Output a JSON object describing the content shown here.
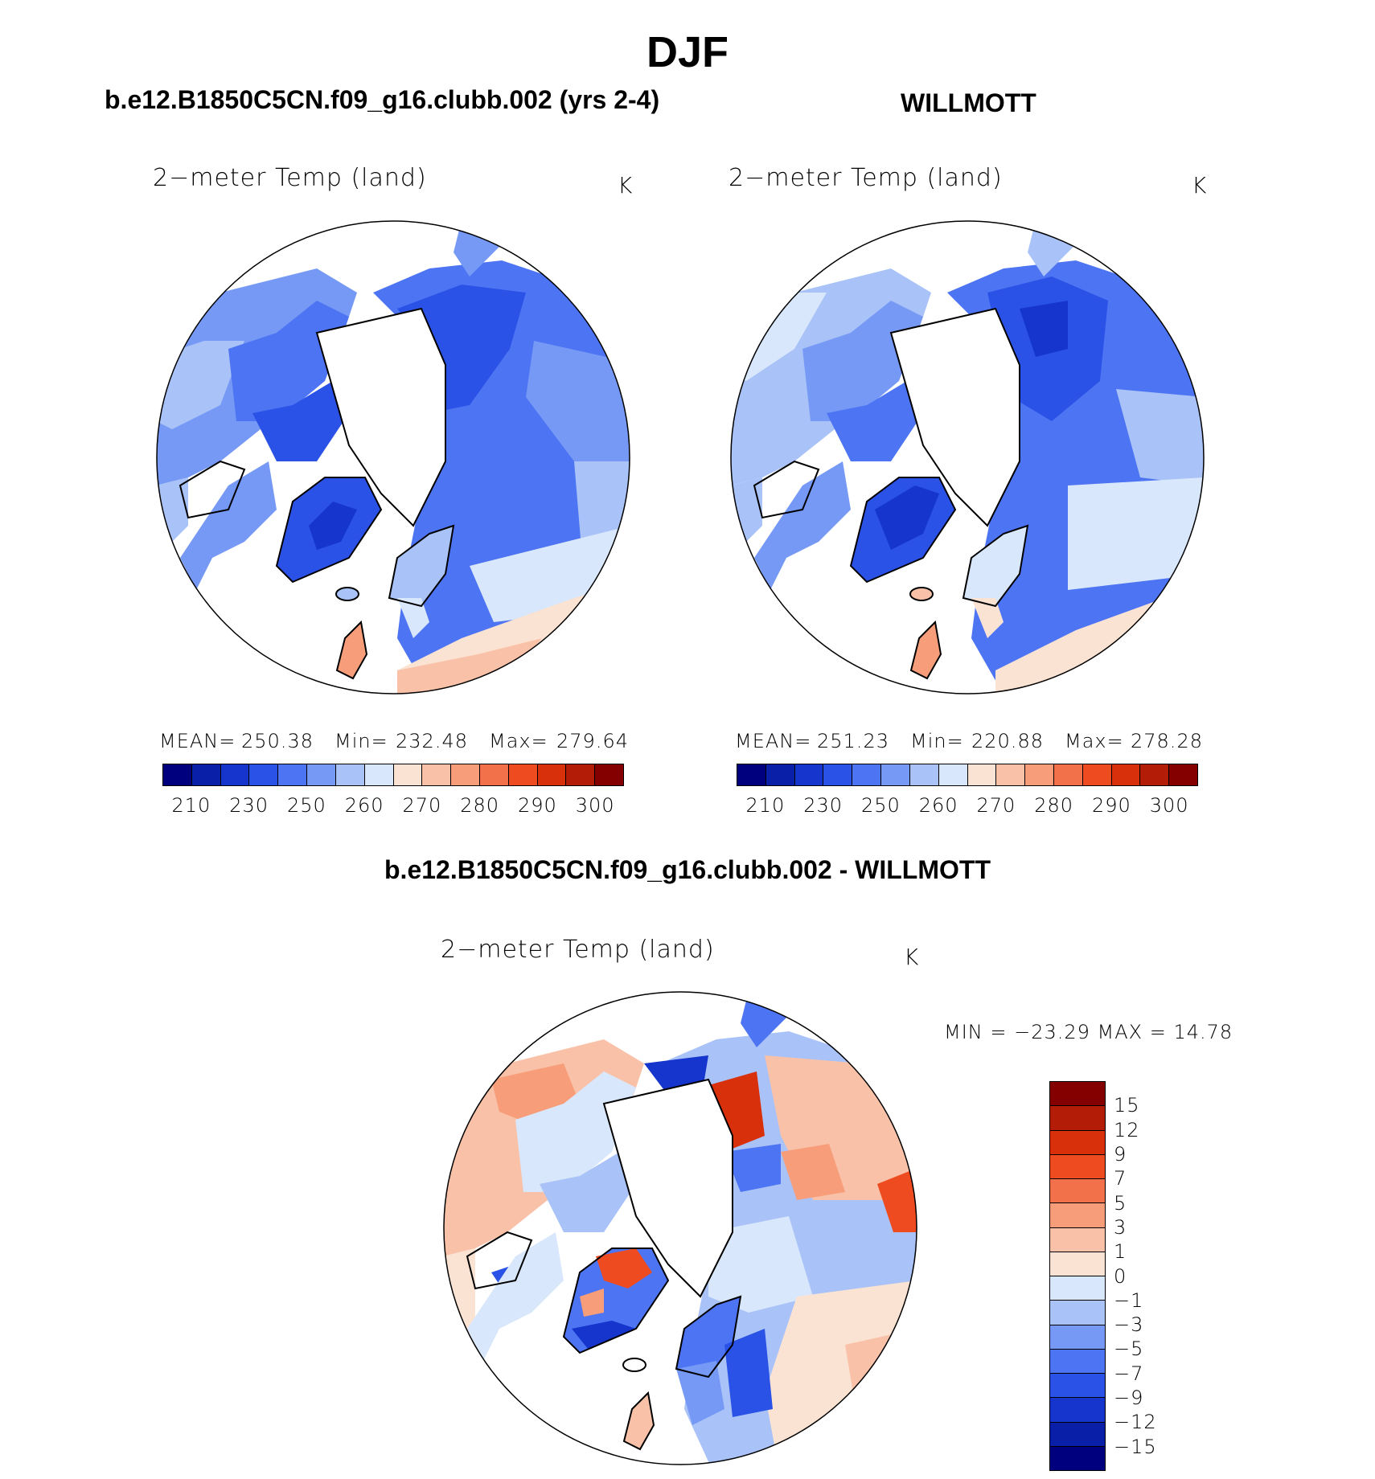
{
  "figure": {
    "season": "DJF",
    "left_title": "b.e12.B1850C5CN.f09_g16.clubb.002 (yrs 2-4)",
    "right_title": "WILLMOTT",
    "diff_title": "b.e12.B1850C5CN.f09_g16.clubb.002 - WILLMOTT"
  },
  "panels": {
    "left": {
      "variable": "2−meter Temp (land)",
      "units": "K",
      "mean_label": "MEAN=",
      "mean": "250.38",
      "min_label": "Min=",
      "min": "232.48",
      "max_label": "Max=",
      "max": "279.64"
    },
    "right": {
      "variable": "2−meter Temp (land)",
      "units": "K",
      "mean_label": "MEAN=",
      "mean": "251.23",
      "min_label": "Min=",
      "min": "220.88",
      "max_label": "Max=",
      "max": "278.28"
    },
    "diff": {
      "variable": "2−meter Temp (land)",
      "units": "K",
      "minmax_text": "MIN  =  −23.29  MAX  =    14.78"
    }
  },
  "colorbar_abs": {
    "ticks": [
      "210",
      "230",
      "250",
      "260",
      "270",
      "280",
      "290",
      "300"
    ],
    "colors": [
      "#00007f",
      "#0a1fa8",
      "#1535cc",
      "#2a52e6",
      "#4d74f2",
      "#7699f5",
      "#a9c2f7",
      "#d8e7fb",
      "#fbe3d3",
      "#f9c2a8",
      "#f79d7a",
      "#f3714a",
      "#ee4b20",
      "#d9300c",
      "#b31c06",
      "#840000"
    ]
  },
  "colorbar_diff": {
    "ticks": [
      "15",
      "12",
      "9",
      "7",
      "5",
      "3",
      "1",
      "0",
      "−1",
      "−3",
      "−5",
      "−7",
      "−9",
      "−12",
      "−15"
    ],
    "colors": [
      "#840000",
      "#b31c06",
      "#d9300c",
      "#ee4b20",
      "#f3714a",
      "#f79d7a",
      "#f9c2a8",
      "#fbe3d3",
      "#d8e7fb",
      "#a9c2f7",
      "#7699f5",
      "#4d74f2",
      "#2a52e6",
      "#1535cc",
      "#0a1fa8",
      "#00007f"
    ]
  }
}
